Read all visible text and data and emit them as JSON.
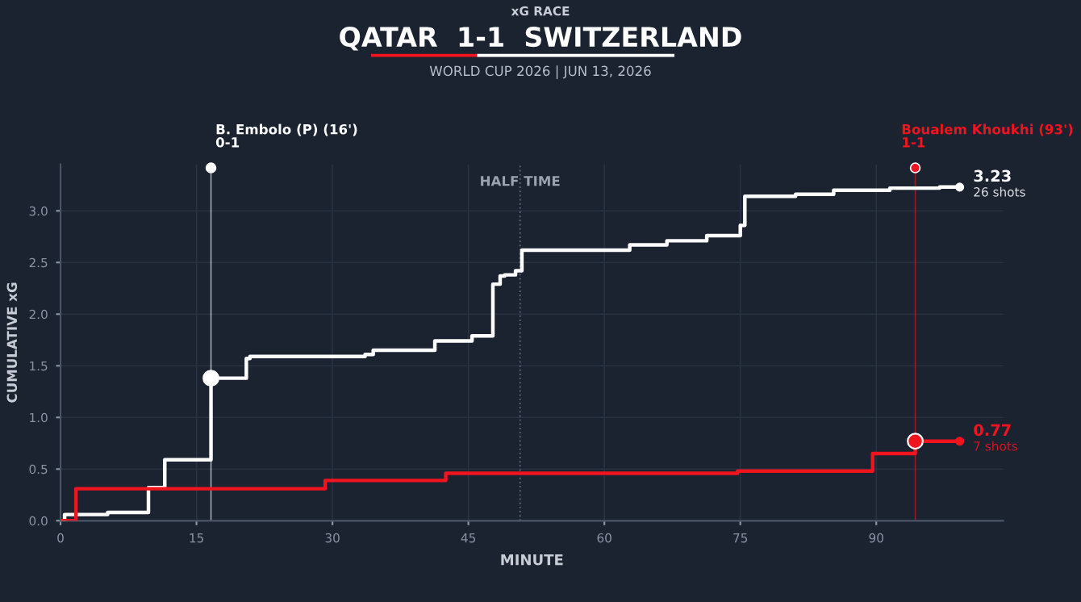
{
  "chart_data": {
    "type": "step",
    "title": "QATAR  1-1  SWITZERLAND",
    "subtitle": "WORLD CUP 2026 | JUN 13, 2026",
    "xlabel": "MINUTE",
    "ylabel": "CUMULATIVE xG",
    "series": [
      {
        "color": "#ffffff",
        "x": [
          0,
          0.45,
          5.2,
          9.7,
          11.5,
          16.6,
          20.5,
          20.9,
          33.6,
          34.5,
          41.3,
          45.4,
          47.7,
          48.5,
          49.0,
          50.2,
          50.9,
          62.8,
          66.9,
          71.3,
          75.0,
          75.5,
          81.1,
          85.3,
          91.5,
          97.0,
          99.2
        ],
        "values": [
          0,
          0.06,
          0.08,
          0.32,
          0.59,
          1.38,
          1.57,
          1.59,
          1.61,
          1.65,
          1.74,
          1.79,
          2.29,
          2.37,
          2.38,
          2.42,
          2.62,
          2.67,
          2.71,
          2.76,
          2.86,
          3.14,
          3.16,
          3.2,
          3.22,
          3.23,
          3.23
        ]
      },
      {
        "color": "#f0141e",
        "x": [
          0,
          1.7,
          29.2,
          42.5,
          74.7,
          89.6,
          94.3,
          99.2
        ],
        "values": [
          0,
          0.31,
          0.39,
          0.46,
          0.48,
          0.65,
          0.77,
          0.77
        ]
      },
      {
        "type": "scatter",
        "x": [
          16.6,
          94.3
        ],
        "values": [
          1.38,
          0.77
        ],
        "colors": [
          "#ffffff",
          "#f0141e"
        ]
      }
    ],
    "xlim": [
      0,
      104
    ],
    "xticks": [
      0,
      15,
      30,
      45,
      60,
      75,
      90
    ],
    "ylim": [
      0,
      3.45
    ],
    "yticks": [
      {
        "value": 0,
        "label": "0.0"
      },
      {
        "value": 0.5,
        "label": "0.5"
      },
      {
        "value": 1,
        "label": "1.0"
      },
      {
        "value": 1.5,
        "label": "1.5"
      },
      {
        "value": 2,
        "label": "2.0"
      },
      {
        "value": 2.5,
        "label": "2.5"
      },
      {
        "value": 3,
        "label": "3.0"
      }
    ],
    "grid": true,
    "ref_lines": [
      {
        "axis": "x",
        "value": 50.7,
        "label": "HALF TIME",
        "color": "#5a6475",
        "line_style": "dotted"
      },
      {
        "axis": "x",
        "value": 16.6,
        "label": "B. Embolo (P) (16')\n0-1",
        "color": "#ffffff",
        "line_style": "solid"
      },
      {
        "axis": "x",
        "value": 94.3,
        "label": "Boualem Khoukhi (93')\n1-1",
        "color": "#f0141e",
        "line_style": "solid"
      }
    ],
    "annotations": [
      "xG RACE",
      {
        "text": "3.23\n26 shots",
        "x": 99.2,
        "y": 3.23
      },
      {
        "text": "0.77\n7 shots",
        "x": 99.2,
        "y": 0.77
      }
    ]
  }
}
